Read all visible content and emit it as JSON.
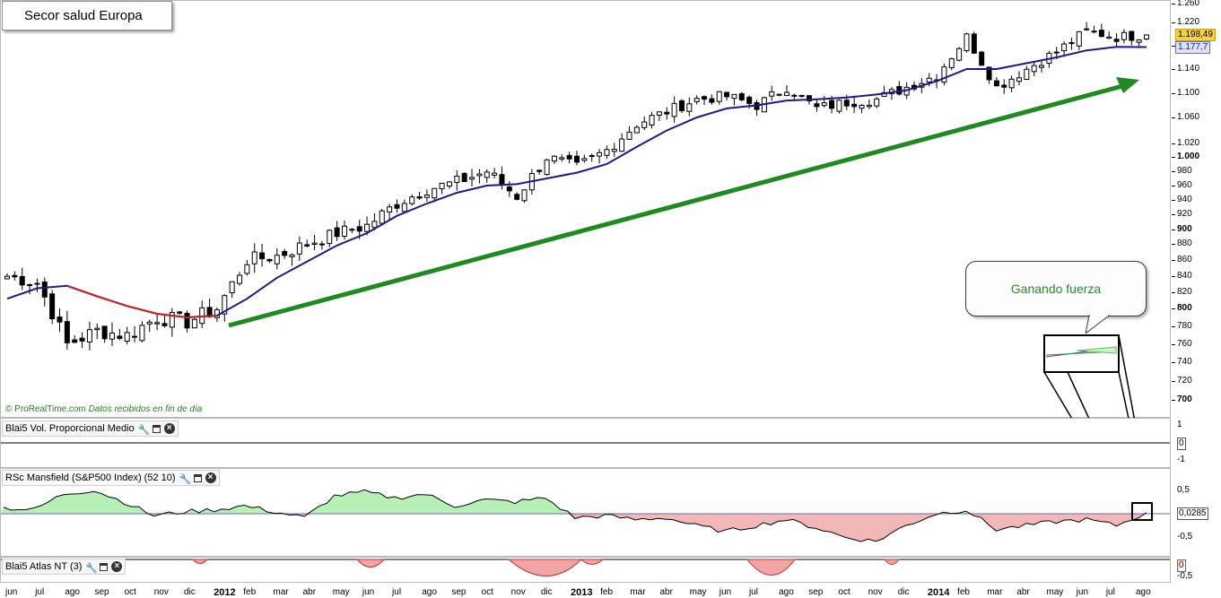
{
  "main_chart": {
    "title": "Secor salud Europa",
    "watermark_brand": "© ProRealTime.com",
    "watermark_note": "Datos recibidos en fin de día",
    "callout_text": "Ganando fuerza",
    "last_price": "1.198,49",
    "ma_value": "1.177,7",
    "y_ticks": [
      "1.260",
      "1.220",
      "1.180",
      "1.140",
      "1.100",
      "1.060",
      "1.020",
      "1.000",
      "980",
      "960",
      "940",
      "920",
      "900",
      "880",
      "860",
      "840",
      "820",
      "800",
      "780",
      "760",
      "740",
      "720",
      "700"
    ],
    "colors": {
      "up_candle": "#ffffff",
      "down_candle": "#000000",
      "ma_rising": "#1a1a8c",
      "ma_falling": "#cc1f1f",
      "trend_arrow": "#1f8a1f",
      "last_price_bg": "#f5d23a",
      "ma_tag_bg": "#dfe3f7"
    }
  },
  "volume_panel": {
    "title": "Blai5 Vol. Proporcional Medio",
    "y_ticks": [
      "1",
      "0",
      "-1"
    ]
  },
  "mansfield_panel": {
    "title": "RSc Mansfield (S&P500 Index) (52 10)",
    "y_ticks": [
      "0,5",
      "0,0285",
      "-0,5"
    ]
  },
  "atlas_panel": {
    "title": "Blai5 Atlas NT (3)",
    "y_ticks": [
      "0",
      "-0,5"
    ]
  },
  "x_axis": {
    "labels": [
      "jun",
      "jul",
      "ago",
      "sep",
      "oct",
      "nov",
      "dic",
      "2012",
      "feb",
      "mar",
      "abr",
      "may",
      "jun",
      "jul",
      "ago",
      "sep",
      "oct",
      "nov",
      "dic",
      "2013",
      "feb",
      "mar",
      "abr",
      "may",
      "jun",
      "jul",
      "ago",
      "sep",
      "oct",
      "nov",
      "dic",
      "2014",
      "feb",
      "mar",
      "abr",
      "may",
      "jun",
      "jul",
      "ago"
    ]
  },
  "chart_data": {
    "type": "candlestick",
    "title": "Secor salud Europa",
    "x": [
      "2011-06",
      "2011-07",
      "2011-08",
      "2011-09",
      "2011-10",
      "2011-11",
      "2011-12",
      "2012-01",
      "2012-02",
      "2012-03",
      "2012-04",
      "2012-05",
      "2012-06",
      "2012-07",
      "2012-08",
      "2012-09",
      "2012-10",
      "2012-11",
      "2012-12",
      "2013-01",
      "2013-02",
      "2013-03",
      "2013-04",
      "2013-05",
      "2013-06",
      "2013-07",
      "2013-08",
      "2013-09",
      "2013-10",
      "2013-11",
      "2013-12",
      "2014-01",
      "2014-02",
      "2014-03",
      "2014-04",
      "2014-05",
      "2014-06",
      "2014-07",
      "2014-08"
    ],
    "series": [
      {
        "name": "Close",
        "values": [
          840,
          832,
          760,
          775,
          770,
          790,
          785,
          800,
          860,
          865,
          880,
          895,
          905,
          935,
          955,
          965,
          980,
          945,
          1000,
          985,
          1010,
          1050,
          1070,
          1090,
          1095,
          1080,
          1110,
          1075,
          1085,
          1090,
          1110,
          1130,
          1195,
          1110,
          1140,
          1170,
          1205,
          1195,
          1198.49
        ]
      },
      {
        "name": "MA",
        "values": [
          812,
          825,
          828,
          815,
          803,
          794,
          790,
          792,
          812,
          838,
          858,
          878,
          895,
          918,
          935,
          950,
          960,
          962,
          970,
          978,
          990,
          1015,
          1040,
          1060,
          1075,
          1080,
          1088,
          1090,
          1093,
          1098,
          1105,
          1120,
          1140,
          1140,
          1150,
          1160,
          1172,
          1178,
          1177.7
        ]
      }
    ],
    "mansfield": [
      0.15,
      0.1,
      0.5,
      0.6,
      0.3,
      -0.05,
      0.05,
      0.1,
      0.2,
      0.05,
      -0.1,
      0.45,
      0.55,
      0.4,
      0.5,
      0.2,
      0.35,
      0.3,
      0.4,
      -0.1,
      -0.05,
      -0.15,
      -0.1,
      -0.3,
      -0.45,
      -0.3,
      -0.15,
      -0.35,
      -0.6,
      -0.7,
      -0.3,
      0.0,
      0.1,
      -0.4,
      -0.3,
      -0.2,
      -0.15,
      -0.3,
      0.0285
    ],
    "ylim": [
      690,
      1260
    ]
  }
}
